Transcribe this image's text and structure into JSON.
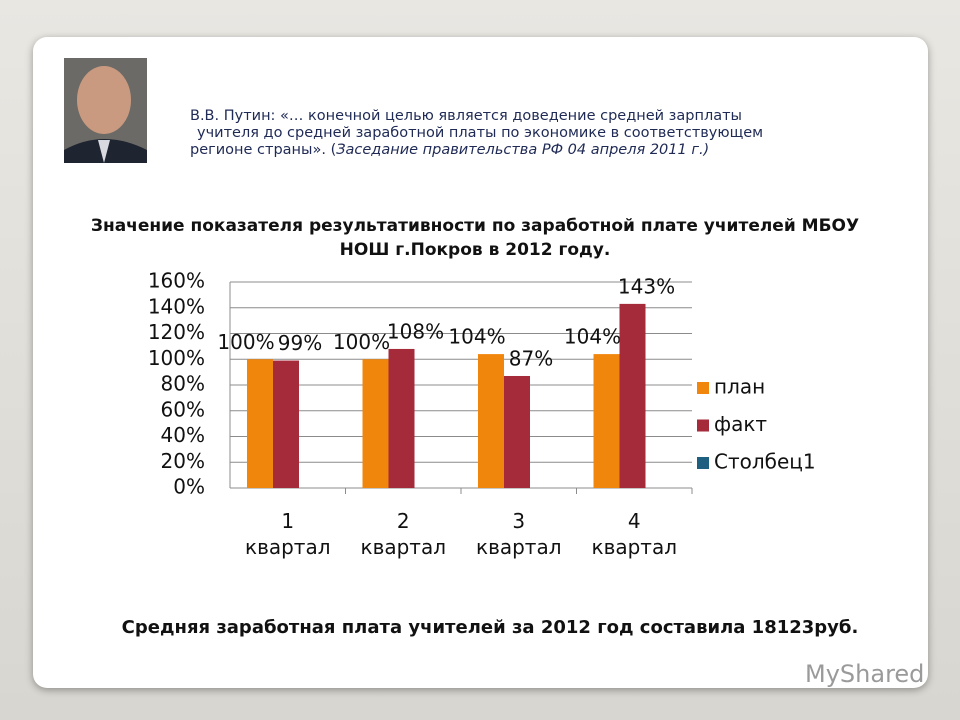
{
  "quote": {
    "lines": [
      "В.В. Путин: «… конечной целью является доведение средней зарплаты",
      "учителя до средней заработной платы по экономике в соответствующем",
      "регионе страны». ("
    ],
    "source": "Заседание правительства РФ 04 апреля 2011 г.)"
  },
  "chart_data": {
    "type": "bar",
    "title": "Значение показателя результативности по заработной плате учителей МБОУ НОШ г.Покров в 2012 году.",
    "categories": [
      "1 квартал",
      "2 квартал",
      "3 квартал",
      "4 квартал"
    ],
    "series": [
      {
        "name": "план",
        "color": "#f0870c",
        "values": [
          100,
          100,
          104,
          104
        ],
        "value_labels": [
          "100%",
          "100%",
          "104%",
          "104%"
        ]
      },
      {
        "name": "факт",
        "color": "#a52a3a",
        "values": [
          99,
          108,
          87,
          143
        ],
        "value_labels": [
          "99%",
          "108%",
          "87%",
          "143%"
        ]
      },
      {
        "name": "Столбец1",
        "color": "#1f5f7f",
        "values": [
          null,
          null,
          null,
          null
        ]
      }
    ],
    "ylim": [
      0,
      160
    ],
    "yticks": [
      {
        "value": 0,
        "label": "0%"
      },
      {
        "value": 20,
        "label": "20%"
      },
      {
        "value": 40,
        "label": "40%"
      },
      {
        "value": 60,
        "label": "60%"
      },
      {
        "value": 80,
        "label": "80%"
      },
      {
        "value": 100,
        "label": "100%"
      },
      {
        "value": 120,
        "label": "120%"
      },
      {
        "value": 140,
        "label": "140%"
      },
      {
        "value": 160,
        "label": "160%"
      }
    ],
    "grid": true,
    "legend": "right"
  },
  "footer": "Средняя заработная плата учителей за 2012 год составила 18123руб.",
  "watermark": "MyShared"
}
